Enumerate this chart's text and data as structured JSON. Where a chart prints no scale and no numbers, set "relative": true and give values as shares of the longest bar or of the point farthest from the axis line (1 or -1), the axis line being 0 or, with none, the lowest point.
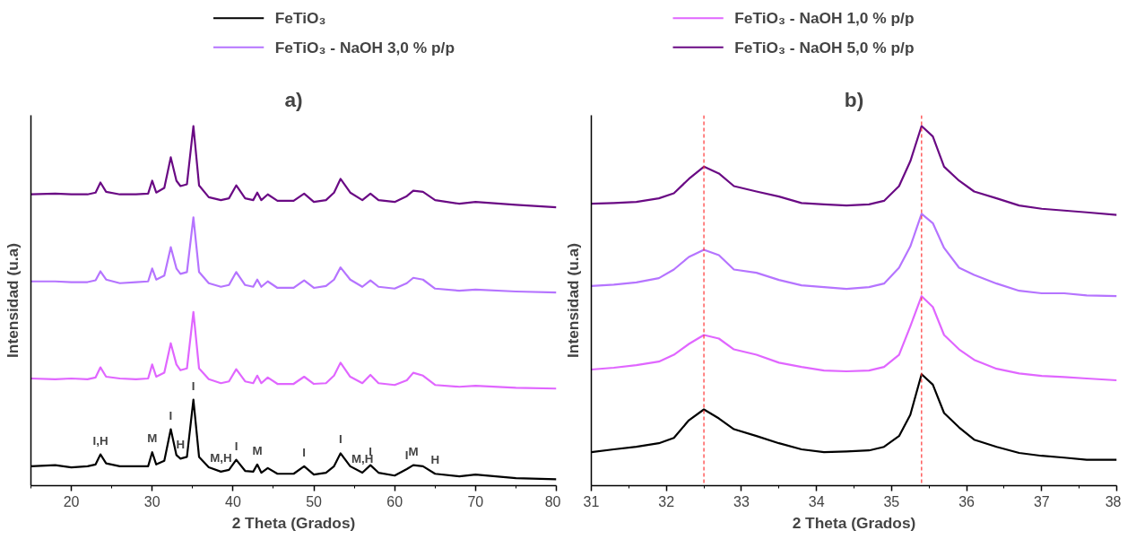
{
  "chart_data": [
    {
      "type": "line",
      "title": "a)",
      "xlabel": "2 Theta (Grados)",
      "ylabel": "Intensidad (u.a)",
      "relative": true,
      "legend": "top",
      "grid": false,
      "xlim": [
        15,
        80
      ],
      "xticks": [
        20,
        30,
        40,
        50,
        60,
        70,
        80
      ],
      "x": [
        15,
        18,
        20,
        22,
        23,
        23.6,
        24.3,
        26,
        28,
        29.5,
        30,
        30.5,
        31.5,
        32.3,
        33,
        33.5,
        34.3,
        35.1,
        35.8,
        37,
        38.5,
        39.5,
        40.4,
        41.5,
        42.5,
        43,
        43.5,
        44.3,
        45.5,
        47.5,
        48.8,
        50,
        51.5,
        52.5,
        53.3,
        54.5,
        56,
        57,
        58,
        60,
        61.5,
        62.3,
        63.5,
        65,
        68,
        70,
        75,
        80
      ],
      "series": [
        {
          "name": "FeTiO₃",
          "color": "#000000",
          "values": [
            0.054,
            0.057,
            0.051,
            0.054,
            0.059,
            0.087,
            0.062,
            0.054,
            0.054,
            0.054,
            0.093,
            0.059,
            0.069,
            0.157,
            0.085,
            0.075,
            0.08,
            0.239,
            0.08,
            0.051,
            0.039,
            0.044,
            0.072,
            0.041,
            0.039,
            0.059,
            0.036,
            0.049,
            0.033,
            0.033,
            0.054,
            0.031,
            0.036,
            0.054,
            0.09,
            0.054,
            0.036,
            0.057,
            0.036,
            0.028,
            0.046,
            0.057,
            0.054,
            0.033,
            0.026,
            0.031,
            0.021,
            0.018
          ]
        },
        {
          "name": "FeTiO₃ - NaOH 1,0 % p/p",
          "color": "#e066ff",
          "values": [
            0.298,
            0.296,
            0.298,
            0.296,
            0.301,
            0.329,
            0.303,
            0.298,
            0.296,
            0.298,
            0.337,
            0.303,
            0.314,
            0.396,
            0.337,
            0.321,
            0.326,
            0.483,
            0.326,
            0.296,
            0.285,
            0.29,
            0.324,
            0.29,
            0.285,
            0.306,
            0.285,
            0.301,
            0.283,
            0.283,
            0.303,
            0.283,
            0.285,
            0.306,
            0.342,
            0.303,
            0.285,
            0.308,
            0.285,
            0.28,
            0.293,
            0.314,
            0.306,
            0.28,
            0.275,
            0.278,
            0.272,
            0.27
          ]
        },
        {
          "name": "FeTiO₃ - NaOH 3,0 % p/p",
          "color": "#b574ff",
          "values": [
            0.568,
            0.568,
            0.566,
            0.566,
            0.571,
            0.596,
            0.573,
            0.563,
            0.566,
            0.568,
            0.604,
            0.573,
            0.584,
            0.663,
            0.604,
            0.589,
            0.594,
            0.746,
            0.594,
            0.563,
            0.553,
            0.558,
            0.594,
            0.558,
            0.553,
            0.573,
            0.553,
            0.568,
            0.55,
            0.55,
            0.571,
            0.55,
            0.555,
            0.573,
            0.607,
            0.573,
            0.553,
            0.571,
            0.553,
            0.548,
            0.563,
            0.578,
            0.573,
            0.548,
            0.542,
            0.545,
            0.54,
            0.537
          ]
        },
        {
          "name": "FeTiO₃ - NaOH 5,0 % p/p",
          "color": "#6a0a84",
          "values": [
            0.81,
            0.812,
            0.81,
            0.81,
            0.815,
            0.843,
            0.817,
            0.81,
            0.81,
            0.812,
            0.848,
            0.815,
            0.828,
            0.913,
            0.848,
            0.833,
            0.838,
            1.0,
            0.835,
            0.802,
            0.794,
            0.799,
            0.835,
            0.799,
            0.794,
            0.815,
            0.794,
            0.81,
            0.792,
            0.792,
            0.812,
            0.789,
            0.794,
            0.815,
            0.853,
            0.815,
            0.794,
            0.812,
            0.794,
            0.789,
            0.805,
            0.82,
            0.817,
            0.794,
            0.784,
            0.789,
            0.781,
            0.774
          ]
        }
      ],
      "annotations": [
        {
          "text": "I,H",
          "x": 23.6,
          "y": 0.087
        },
        {
          "text": "M",
          "x": 30,
          "y": 0.093
        },
        {
          "text": "I",
          "x": 32.3,
          "y": 0.157
        },
        {
          "text": "H",
          "x": 33.5,
          "y": 0.075
        },
        {
          "text": "I",
          "x": 35.1,
          "y": 0.239
        },
        {
          "text": "M,H",
          "x": 38.5,
          "y": 0.039
        },
        {
          "text": "I",
          "x": 40.4,
          "y": 0.072
        },
        {
          "text": "M",
          "x": 43,
          "y": 0.059
        },
        {
          "text": "I",
          "x": 48.8,
          "y": 0.054
        },
        {
          "text": "I",
          "x": 53.3,
          "y": 0.09
        },
        {
          "text": "M,H",
          "x": 56,
          "y": 0.036
        },
        {
          "text": "I",
          "x": 57,
          "y": 0.057
        },
        {
          "text": "I",
          "x": 61.5,
          "y": 0.046
        },
        {
          "text": "M",
          "x": 62.3,
          "y": 0.057
        },
        {
          "text": "H",
          "x": 65,
          "y": 0.033
        }
      ]
    },
    {
      "type": "line",
      "title": "b)",
      "xlabel": "2 Theta (Grados)",
      "ylabel": "Intensidad (u.a)",
      "relative": true,
      "grid": false,
      "xlim": [
        31,
        38
      ],
      "xticks": [
        31,
        32,
        33,
        34,
        35,
        36,
        37,
        38
      ],
      "x": [
        31,
        31.3,
        31.6,
        31.9,
        32.1,
        32.3,
        32.5,
        32.7,
        32.9,
        33.2,
        33.5,
        33.8,
        34.1,
        34.4,
        34.7,
        34.9,
        35.1,
        35.25,
        35.4,
        35.55,
        35.7,
        35.9,
        36.1,
        36.4,
        36.7,
        37,
        37.3,
        37.6,
        38
      ],
      "series": [
        {
          "color": "#000000",
          "values": [
            0.093,
            0.101,
            0.108,
            0.118,
            0.133,
            0.182,
            0.212,
            0.187,
            0.157,
            0.138,
            0.118,
            0.101,
            0.093,
            0.095,
            0.098,
            0.108,
            0.138,
            0.197,
            0.31,
            0.281,
            0.202,
            0.162,
            0.128,
            0.108,
            0.091,
            0.083,
            0.078,
            0.072,
            0.072
          ]
        },
        {
          "color": "#e066ff",
          "values": [
            0.323,
            0.328,
            0.335,
            0.345,
            0.364,
            0.394,
            0.419,
            0.409,
            0.379,
            0.364,
            0.342,
            0.33,
            0.32,
            0.318,
            0.32,
            0.33,
            0.364,
            0.443,
            0.527,
            0.497,
            0.419,
            0.379,
            0.35,
            0.325,
            0.312,
            0.305,
            0.302,
            0.298,
            0.293
          ]
        },
        {
          "color": "#b574ff",
          "values": [
            0.555,
            0.559,
            0.565,
            0.577,
            0.601,
            0.636,
            0.656,
            0.641,
            0.601,
            0.592,
            0.572,
            0.557,
            0.552,
            0.547,
            0.552,
            0.562,
            0.606,
            0.665,
            0.756,
            0.73,
            0.661,
            0.606,
            0.586,
            0.562,
            0.542,
            0.535,
            0.535,
            0.529,
            0.527
          ]
        },
        {
          "color": "#6a0a84",
          "values": [
            0.784,
            0.786,
            0.789,
            0.799,
            0.813,
            0.853,
            0.887,
            0.868,
            0.833,
            0.818,
            0.804,
            0.786,
            0.782,
            0.779,
            0.782,
            0.792,
            0.833,
            0.902,
            1.0,
            0.971,
            0.887,
            0.848,
            0.818,
            0.799,
            0.779,
            0.77,
            0.765,
            0.76,
            0.753
          ]
        }
      ],
      "ref_lines": [
        {
          "axis": "x",
          "value": 32.5,
          "color": "#ff3333",
          "line_style": "dashed"
        },
        {
          "axis": "x",
          "value": 35.4,
          "color": "#ff3333",
          "line_style": "dashed"
        }
      ]
    }
  ]
}
